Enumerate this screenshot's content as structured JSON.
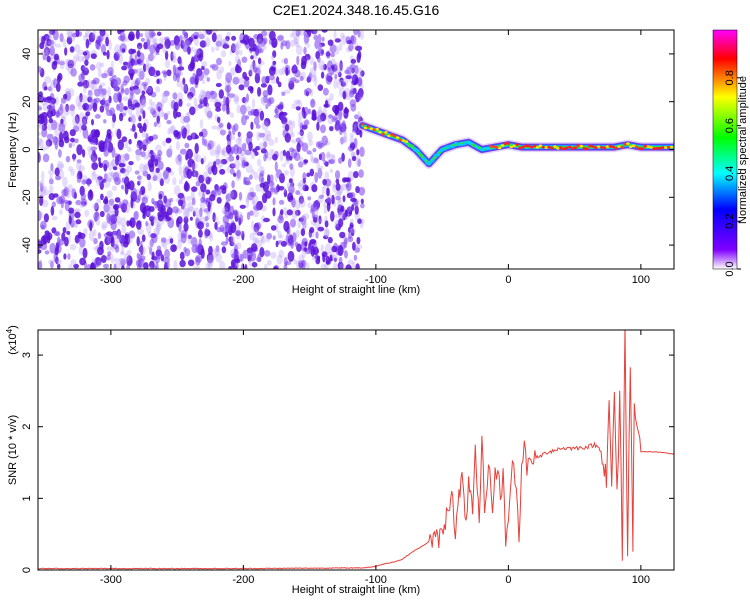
{
  "figure_title": "C2E1.2024.348.16.45.G16",
  "colors": {
    "snr_line": "#e8403a",
    "spectrogram_background": "#ffffff",
    "noise_purple": "#6b1ee0"
  },
  "chart_data": [
    {
      "type": "heatmap",
      "title": "C2E1.2024.348.16.45.G16",
      "xlabel": "Height of straight line (km)",
      "ylabel": "Frequency (Hz)",
      "xlim": [
        -355,
        125
      ],
      "ylim": [
        -50,
        50
      ],
      "x_ticks": [
        -300,
        -200,
        -100,
        0,
        100
      ],
      "y_ticks": [
        -40,
        -20,
        0,
        20,
        40
      ],
      "colorbar": {
        "label": "Normalized spectral amplitude",
        "range": [
          0,
          1
        ],
        "ticks": [
          "0.0",
          "0.2",
          "0.4",
          "0.6",
          "0.8"
        ],
        "colors": [
          "#ffffff",
          "#8000ff",
          "#0000ff",
          "#00ffff",
          "#00ff00",
          "#ffff00",
          "#ff0000",
          "#ff00ff"
        ]
      },
      "noise_region": {
        "x_range": [
          -355,
          -110
        ],
        "amplitude_range": [
          0.0,
          0.15
        ]
      },
      "signal_trace": {
        "x": [
          -110,
          -100,
          -90,
          -80,
          -70,
          -60,
          -50,
          -40,
          -30,
          -20,
          -10,
          0,
          10,
          20,
          40,
          60,
          80,
          90,
          100,
          110,
          125
        ],
        "frequency": [
          10,
          8,
          6,
          4,
          0,
          -6,
          0,
          2,
          3,
          0,
          1,
          2,
          1,
          1,
          1,
          1,
          1,
          2,
          1,
          1,
          1
        ],
        "peak_amplitude": [
          0.9,
          0.95,
          0.9,
          0.9,
          0.7,
          0.5,
          0.6,
          0.6,
          0.6,
          0.7,
          0.9,
          1.0,
          1.0,
          1.0,
          1.0,
          1.0,
          1.0,
          0.8,
          1.0,
          1.0,
          1.0
        ]
      }
    },
    {
      "type": "line",
      "xlabel": "Height of straight line (km)",
      "ylabel": "SNR (10 * v/v)",
      "y_multiplier_label": "(x10",
      "y_multiplier_exponent": "4",
      "y_multiplier_suffix": ")",
      "xlim": [
        -355,
        125
      ],
      "ylim": [
        0,
        3.35
      ],
      "x_ticks": [
        -300,
        -200,
        -100,
        0,
        100
      ],
      "y_ticks": [
        0,
        1,
        2,
        3
      ],
      "series": [
        {
          "x": [
            -355,
            -200,
            -110,
            -100,
            -95,
            -90,
            -85,
            -80,
            -75,
            -70,
            -65,
            -60,
            -55,
            -50,
            -45,
            -42,
            -40,
            -38,
            -35,
            -32,
            -30,
            -27,
            -25,
            -22,
            -20,
            -18,
            -16,
            -14,
            -12,
            -10,
            -8,
            -6,
            -4,
            -2,
            0,
            2,
            4,
            6,
            8,
            10,
            12,
            14,
            16,
            18,
            20,
            25,
            30,
            40,
            50,
            60,
            65,
            70,
            74,
            76,
            78,
            80,
            82,
            84,
            86,
            88,
            90,
            92,
            94,
            95,
            100,
            110,
            125
          ],
          "y": [
            0.02,
            0.02,
            0.03,
            0.05,
            0.08,
            0.1,
            0.12,
            0.15,
            0.22,
            0.28,
            0.33,
            0.4,
            0.42,
            0.48,
            0.9,
            1.15,
            0.35,
            0.95,
            1.3,
            0.55,
            1.35,
            0.75,
            1.6,
            0.6,
            1.82,
            0.9,
            1.15,
            1.55,
            0.75,
            1.3,
            1.5,
            0.95,
            1.35,
            0.45,
            0.6,
            1.35,
            1.45,
            1.2,
            0.4,
            1.5,
            1.8,
            1.35,
            1.5,
            1.6,
            1.55,
            1.6,
            1.65,
            1.7,
            1.7,
            1.72,
            1.75,
            1.68,
            1.3,
            2.2,
            1.1,
            2.55,
            0.9,
            2.4,
            0.35,
            3.35,
            0.2,
            3.0,
            0.25,
            2.5,
            1.65,
            1.65,
            1.62
          ]
        }
      ]
    }
  ]
}
